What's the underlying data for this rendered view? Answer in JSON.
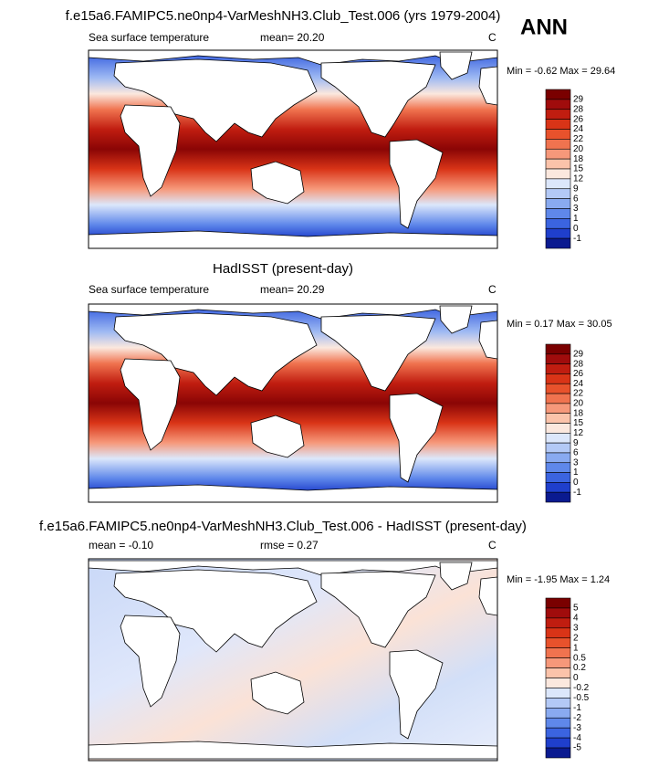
{
  "season": "ANN",
  "panels": [
    {
      "title": "f.e15a6.FAMIPC5.ne0np4-VarMeshNH3.Club_Test.006 (yrs 1979-2004)",
      "header": [
        "Sea surface temperature",
        "mean=  20.20"
      ],
      "units": "C",
      "range": "Min =  -0.62 Max =  29.64",
      "colorbar": {
        "labels": [
          29,
          28,
          26,
          24,
          22,
          20,
          18,
          15,
          12,
          9,
          6,
          3,
          1,
          0,
          -1
        ],
        "colors": [
          "#7a0000",
          "#a00c0c",
          "#c01d10",
          "#d93417",
          "#e8522c",
          "#f0734f",
          "#f6987a",
          "#fbc3aa",
          "#fbe8de",
          "#dce7fb",
          "#b3c9f6",
          "#89aaf0",
          "#5f88ea",
          "#3b64e0",
          "#1f3fcc",
          "#0a1a90"
        ]
      }
    },
    {
      "title": "HadISST (present-day)",
      "header": [
        "Sea surface temperature",
        "mean=  20.29"
      ],
      "units": "C",
      "range": "Min =  0.17 Max =  30.05",
      "colorbar": {
        "labels": [
          29,
          28,
          26,
          24,
          22,
          20,
          18,
          15,
          12,
          9,
          6,
          3,
          1,
          0,
          -1
        ],
        "colors": [
          "#7a0000",
          "#a00c0c",
          "#c01d10",
          "#d93417",
          "#e8522c",
          "#f0734f",
          "#f6987a",
          "#fbc3aa",
          "#fbe8de",
          "#dce7fb",
          "#b3c9f6",
          "#89aaf0",
          "#5f88ea",
          "#3b64e0",
          "#1f3fcc",
          "#0a1a90"
        ]
      }
    },
    {
      "title": "f.e15a6.FAMIPC5.ne0np4-VarMeshNH3.Club_Test.006 - HadISST (present-day)",
      "header": [
        "mean = -0.10",
        "rmse =  0.27"
      ],
      "units": "C",
      "range": "Min = -1.95 Max =  1.24",
      "colorbar": {
        "labels": [
          5,
          4,
          3,
          2,
          1,
          0.5,
          0.2,
          0,
          -0.2,
          -0.5,
          -1,
          -2,
          -3,
          -4,
          -5
        ],
        "colors": [
          "#7a0000",
          "#a00c0c",
          "#c01d10",
          "#d93417",
          "#e8522c",
          "#f0734f",
          "#f6987a",
          "#fbc3aa",
          "#fbe8de",
          "#dce7fb",
          "#b3c9f6",
          "#89aaf0",
          "#5f88ea",
          "#3b64e0",
          "#1f3fcc",
          "#0a1a90"
        ]
      }
    }
  ]
}
